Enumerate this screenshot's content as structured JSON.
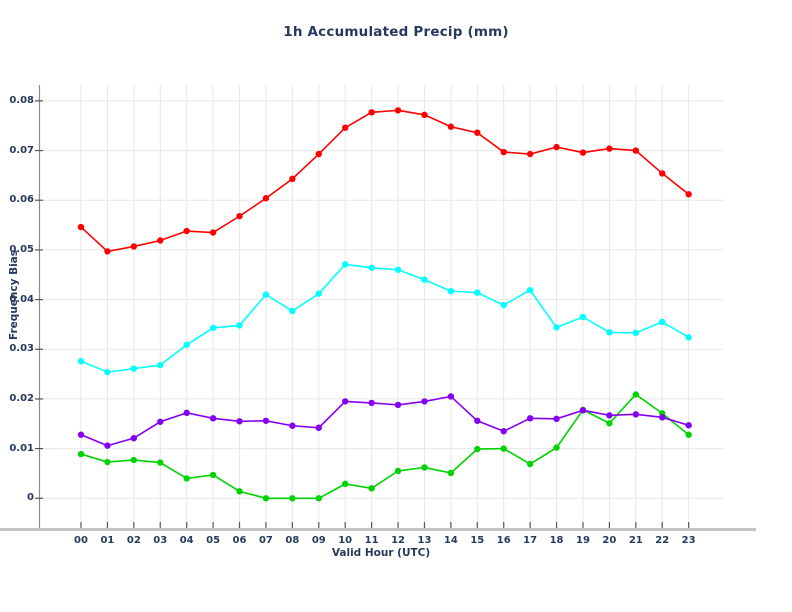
{
  "title": "1h Accumulated Precip (mm)",
  "colors": {
    "text": "#253a5e",
    "grid": "#e7e7e7",
    "left_spine": "#8a8a8a",
    "bottom_axis": "#c3c3c3",
    "tick_mark": "#555555",
    "background": "#ffffff"
  },
  "chart_data": {
    "type": "line",
    "title": "1h Accumulated Precip (mm)",
    "xlabel": "Valid Hour (UTC)",
    "ylabel": "Frequency Bias",
    "grid": true,
    "legend": "none",
    "x_tick_labels": [
      "00",
      "01",
      "02",
      "03",
      "04",
      "05",
      "06",
      "07",
      "08",
      "09",
      "10",
      "11",
      "12",
      "13",
      "14",
      "15",
      "16",
      "17",
      "18",
      "19",
      "20",
      "21",
      "22",
      "23"
    ],
    "x": [
      0,
      1,
      2,
      3,
      4,
      5,
      6,
      7,
      8,
      9,
      10,
      11,
      12,
      13,
      14,
      15,
      16,
      17,
      18,
      19,
      20,
      21,
      22,
      23
    ],
    "y_ticks": [
      0,
      0.01,
      0.02,
      0.03,
      0.04,
      0.05,
      0.06,
      0.07,
      0.08
    ],
    "y_tick_labels": [
      "0",
      "0.01",
      "0.02",
      "0.03",
      "0.04",
      "0.05",
      "0.06",
      "0.07",
      "0.08"
    ],
    "xlim": [
      -1.59,
      24.3
    ],
    "ylim": [
      -0.00558,
      0.0832
    ],
    "marker": "circle",
    "series": [
      {
        "name": "series-red",
        "color": "#ff0000",
        "values": [
          0.0546,
          0.0497,
          0.0507,
          0.0519,
          0.0538,
          0.0535,
          0.0568,
          0.0604,
          0.0643,
          0.0693,
          0.0746,
          0.0777,
          0.0781,
          0.0772,
          0.0748,
          0.0736,
          0.0697,
          0.0693,
          0.0707,
          0.0696,
          0.0704,
          0.07,
          0.0654,
          0.0612
        ]
      },
      {
        "name": "series-cyan",
        "color": "#00ffff",
        "values": [
          0.0276,
          0.0254,
          0.0261,
          0.0268,
          0.0309,
          0.0343,
          0.0348,
          0.041,
          0.0377,
          0.0412,
          0.0471,
          0.0464,
          0.046,
          0.044,
          0.0417,
          0.0414,
          0.0389,
          0.0419,
          0.0344,
          0.0365,
          0.0334,
          0.0333,
          0.0355,
          0.0324
        ]
      },
      {
        "name": "series-green",
        "color": "#00d400",
        "values": [
          0.0089,
          0.0073,
          0.0077,
          0.0072,
          0.004,
          0.0047,
          0.0014,
          0.0,
          0.0,
          0.0,
          0.0029,
          0.002,
          0.0055,
          0.0062,
          0.0051,
          0.0099,
          0.01,
          0.0069,
          0.0102,
          0.0178,
          0.0151,
          0.0209,
          0.0171,
          0.0128
        ]
      },
      {
        "name": "series-purple",
        "color": "#8500f2",
        "values": [
          0.0128,
          0.0106,
          0.0121,
          0.0154,
          0.0172,
          0.0161,
          0.0155,
          0.0156,
          0.0146,
          0.0142,
          0.0195,
          0.0192,
          0.0188,
          0.0195,
          0.0205,
          0.0156,
          0.0135,
          0.0161,
          0.016,
          0.0177,
          0.0167,
          0.0169,
          0.0163,
          0.0147
        ]
      }
    ]
  }
}
